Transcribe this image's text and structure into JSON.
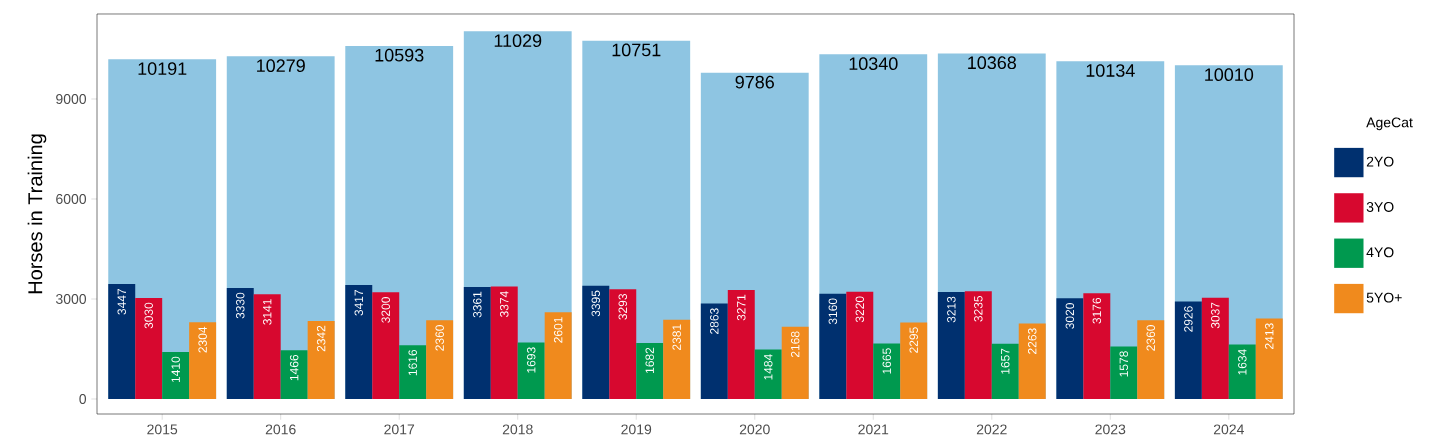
{
  "chart_data": {
    "type": "bar",
    "categories": [
      "2015",
      "2016",
      "2017",
      "2018",
      "2019",
      "2020",
      "2021",
      "2022",
      "2023",
      "2024"
    ],
    "ylabel": "Horses in Training",
    "legend_title": "AgeCat",
    "legend": "right",
    "data_labels": true,
    "ylim": [
      -450,
      11550
    ],
    "yticks": [
      0,
      3000,
      6000,
      9000
    ],
    "series": [
      {
        "color": "#8ec5e2",
        "values": [
          10191,
          10279,
          10593,
          11029,
          10751,
          9786,
          10340,
          10368,
          10134,
          10010
        ]
      },
      {
        "name": "2YO",
        "color": "#00306f",
        "values": [
          3447,
          3330,
          3417,
          3361,
          3395,
          2863,
          3160,
          3213,
          3020,
          2926
        ]
      },
      {
        "name": "3YO",
        "color": "#d7082f",
        "values": [
          3030,
          3141,
          3200,
          3374,
          3293,
          3271,
          3220,
          3235,
          3176,
          3037
        ]
      },
      {
        "name": "4YO",
        "color": "#00994f",
        "values": [
          1410,
          1466,
          1616,
          1693,
          1682,
          1484,
          1665,
          1657,
          1578,
          1634
        ]
      },
      {
        "name": "5YO+",
        "color": "#f08a1d",
        "values": [
          2304,
          2342,
          2360,
          2601,
          2381,
          2168,
          2295,
          2263,
          2360,
          2413
        ]
      }
    ]
  }
}
